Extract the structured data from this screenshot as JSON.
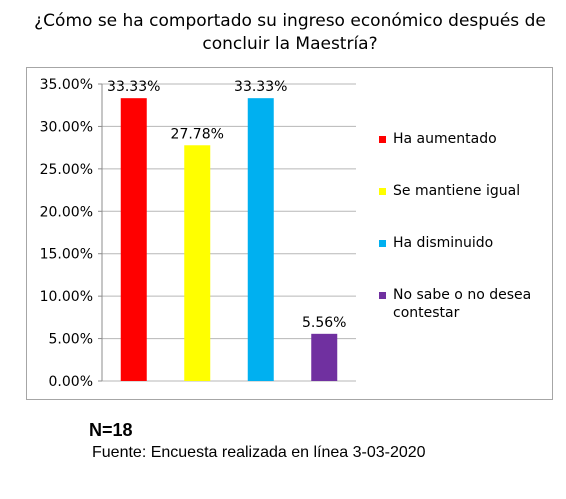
{
  "chart_data": {
    "type": "bar",
    "title": "¿Cómo se ha comportado su ingreso económico después de concluir la Maestría?",
    "categories": [
      "Ha aumentado",
      "Se mantiene igual",
      "Ha disminuido",
      "No sabe o no desea contestar"
    ],
    "values": [
      33.33,
      27.78,
      33.33,
      5.56
    ],
    "value_labels": [
      "33.33%",
      "27.78%",
      "33.33%",
      "5.56%"
    ],
    "colors": [
      "#ff0000",
      "#ffff00",
      "#00b0f0",
      "#7030a0"
    ],
    "ylim": [
      0,
      35
    ],
    "yticks": [
      0,
      5,
      10,
      15,
      20,
      25,
      30,
      35
    ],
    "ytick_labels": [
      "0.00%",
      "5.00%",
      "10.00%",
      "15.00%",
      "20.00%",
      "25.00%",
      "30.00%",
      "35.00%"
    ],
    "grid": true,
    "legend": "right"
  },
  "footer": {
    "n_label": "N=18",
    "source": "Fuente: Encuesta realizada en línea 3-03-2020"
  }
}
